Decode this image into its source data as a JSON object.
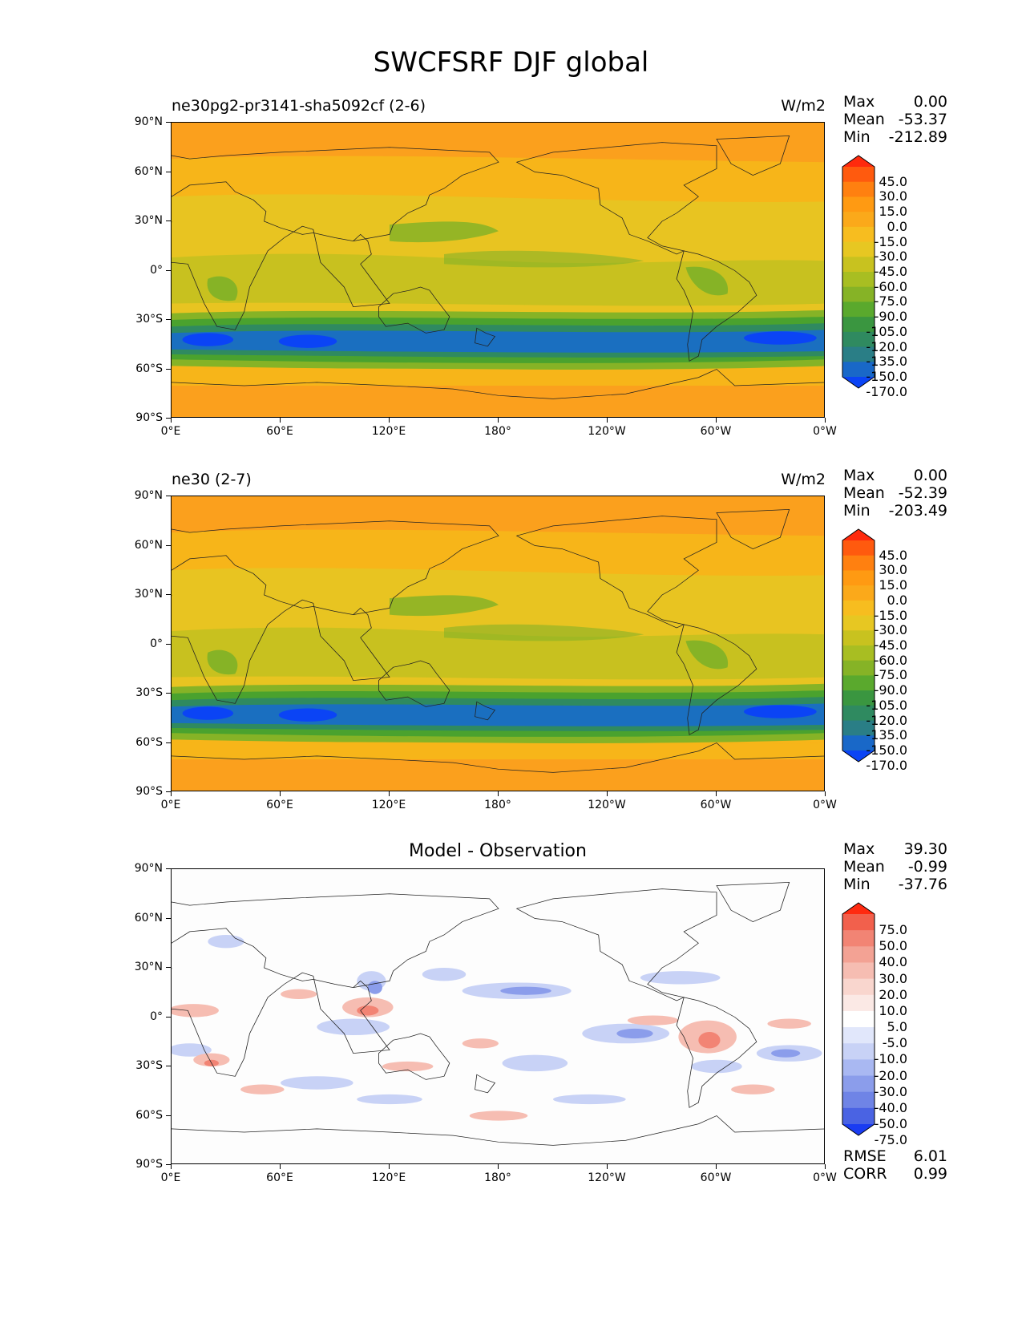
{
  "figure_title": "SWCFSRF DJF global",
  "panels": [
    {
      "title_left": "ne30pg2-pr3141-sha5092cf (2-6)",
      "title_center": "",
      "units": "W/m2",
      "stats": [
        {
          "label": "Max",
          "value": "0.00"
        },
        {
          "label": "Mean",
          "value": "-53.37"
        },
        {
          "label": "Min",
          "value": "-212.89"
        }
      ],
      "colorbar_type": "model",
      "footer_stats": []
    },
    {
      "title_left": "ne30 (2-7)",
      "title_center": "",
      "units": "W/m2",
      "stats": [
        {
          "label": "Max",
          "value": "0.00"
        },
        {
          "label": "Mean",
          "value": "-52.39"
        },
        {
          "label": "Min",
          "value": "-203.49"
        }
      ],
      "colorbar_type": "model",
      "footer_stats": []
    },
    {
      "title_left": "",
      "title_center": "Model - Observation",
      "units": "",
      "stats": [
        {
          "label": "Max",
          "value": "39.30"
        },
        {
          "label": "Mean",
          "value": "-0.99"
        },
        {
          "label": "Min",
          "value": "-37.76"
        }
      ],
      "colorbar_type": "diff",
      "footer_stats": [
        {
          "label": "RMSE",
          "value": "6.01"
        },
        {
          "label": "CORR",
          "value": "0.99"
        }
      ]
    }
  ],
  "lat_labels": [
    "90°N",
    "60°N",
    "30°N",
    "0°",
    "30°S",
    "60°S",
    "90°S"
  ],
  "lon_labels": [
    "0°E",
    "60°E",
    "120°E",
    "180°",
    "120°W",
    "60°W",
    "0°W"
  ],
  "colorbars": {
    "model": {
      "labels": [
        "45.0",
        "30.0",
        "15.0",
        "0.0",
        "-15.0",
        "-30.0",
        "-45.0",
        "-60.0",
        "-75.0",
        "-90.0",
        "-105.0",
        "-120.0",
        "-135.0",
        "-150.0",
        "-170.0"
      ],
      "colors": [
        "#ff2a0d",
        "#ff5a0e",
        "#ff8010",
        "#ff9a12",
        "#fba91a",
        "#f7bd1f",
        "#e7c722",
        "#c8c21f",
        "#a8be22",
        "#86b326",
        "#5aa92d",
        "#3a9640",
        "#2f8a60",
        "#2a7e86",
        "#1968c8",
        "#0b44f5"
      ]
    },
    "diff": {
      "labels": [
        "75.0",
        "50.0",
        "40.0",
        "30.0",
        "20.0",
        "10.0",
        "5.0",
        "-5.0",
        "-10.0",
        "-20.0",
        "-30.0",
        "-40.0",
        "-50.0",
        "-75.0"
      ],
      "colors": [
        "#ff2a10",
        "#f2604c",
        "#f28474",
        "#f3a294",
        "#f6bdb2",
        "#f9d6ce",
        "#fbe9e5",
        "#ffffff",
        "#e1e7fb",
        "#c8d2f6",
        "#a9b8f2",
        "#8b9deb",
        "#6f84e6",
        "#4a63e3",
        "#1a3cf2"
      ]
    }
  },
  "map_colors": {
    "polar": "#fba01d",
    "midlat": "#f7b519",
    "subtrop": "#e8c421",
    "trop": "#c8c11f",
    "green": "#86b326",
    "dgreen": "#4aa22e",
    "teal": "#2f8a60",
    "storm": "#1a6fc0",
    "core": "#0b44f5"
  }
}
